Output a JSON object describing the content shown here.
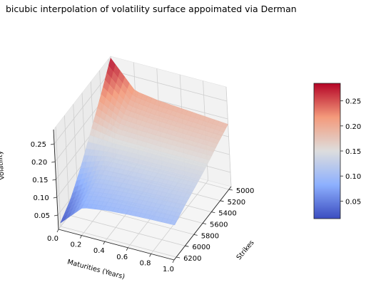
{
  "chart_data": {
    "type": "surface3d",
    "title": "bicubic interpolation of volatility surface appoimated via Derman",
    "xlabel": "Maturities (Years)",
    "ylabel": "Strikes",
    "zlabel": "Volatility",
    "x_ticks": [
      0.0,
      0.2,
      0.4,
      0.6,
      0.8,
      1.0
    ],
    "x_tick_labels": [
      "0.0",
      "0.2",
      "0.4",
      "0.6",
      "0.8",
      "1.0"
    ],
    "y_ticks": [
      5000,
      5200,
      5400,
      5600,
      5800,
      6000,
      6200
    ],
    "y_tick_labels": [
      "5000",
      "5200",
      "5400",
      "5600",
      "5800",
      "6000",
      "6200"
    ],
    "z_ticks": [
      0.05,
      0.1,
      0.15,
      0.2,
      0.25
    ],
    "z_tick_labels": [
      "0.05",
      "0.10",
      "0.15",
      "0.20",
      "0.25"
    ],
    "xlim": [
      0.0,
      1.0
    ],
    "ylim": [
      4950,
      6250
    ],
    "zlim": [
      0.01,
      0.29
    ],
    "grid": true,
    "colormap": "coolwarm",
    "colorbar": {
      "ticks": [
        0.05,
        0.1,
        0.15,
        0.2,
        0.25
      ],
      "tick_labels": [
        "0.05",
        "0.10",
        "0.15",
        "0.20",
        "0.25"
      ],
      "range": [
        0.015,
        0.285
      ]
    },
    "surface": {
      "x": [
        0.0,
        0.2,
        0.4,
        0.6,
        0.8,
        1.0
      ],
      "y": [
        4950,
        5200,
        5450,
        5700,
        5950,
        6200
      ],
      "z": [
        [
          0.285,
          0.21,
          0.2,
          0.195,
          0.19,
          0.185
        ],
        [
          0.22,
          0.18,
          0.175,
          0.172,
          0.17,
          0.168
        ],
        [
          0.16,
          0.15,
          0.15,
          0.148,
          0.148,
          0.148
        ],
        [
          0.1,
          0.125,
          0.128,
          0.13,
          0.131,
          0.132
        ],
        [
          0.05,
          0.1,
          0.108,
          0.112,
          0.115,
          0.118
        ],
        [
          0.02,
          0.08,
          0.09,
          0.095,
          0.098,
          0.1
        ]
      ]
    }
  }
}
